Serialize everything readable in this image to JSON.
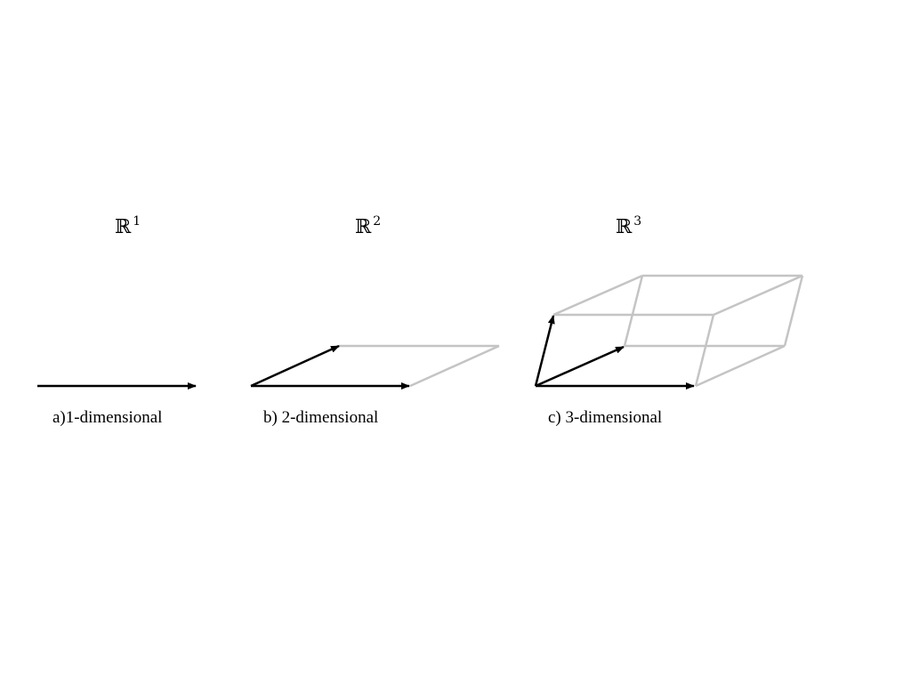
{
  "panels": [
    {
      "space_symbol": "ℝ",
      "space_exponent": "1",
      "caption": "a)1-dimensional"
    },
    {
      "space_symbol": "ℝ",
      "space_exponent": "2",
      "caption": "b) 2-dimensional"
    },
    {
      "space_symbol": "ℝ",
      "space_exponent": "3",
      "caption": "c) 3-dimensional"
    }
  ],
  "colors": {
    "basis_vector": "#000000",
    "span_edge": "#c4c4c4"
  }
}
